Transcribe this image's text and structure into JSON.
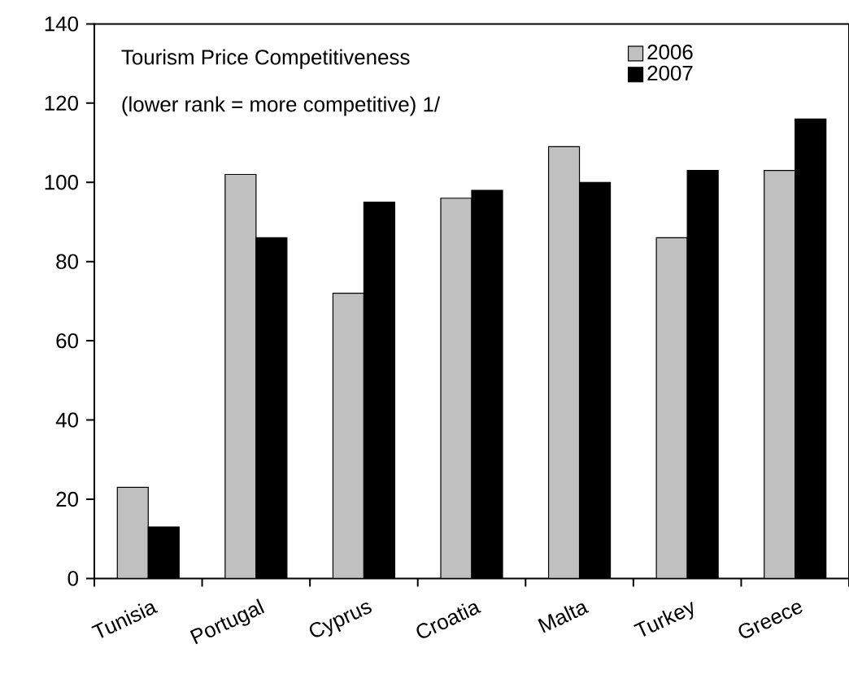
{
  "chart_data": {
    "type": "bar",
    "title": "Tourism Price Competitiveness",
    "subtitle": "(lower rank = more competitive) 1/",
    "categories": [
      "Tunisia",
      "Portugal",
      "Cyprus",
      "Croatia",
      "Malta",
      "Turkey",
      "Greece"
    ],
    "series": [
      {
        "name": "2006",
        "color": "#c0c0c0",
        "values": [
          23,
          102,
          72,
          96,
          109,
          86,
          103
        ]
      },
      {
        "name": "2007",
        "color": "#000000",
        "values": [
          13,
          86,
          95,
          98,
          100,
          103,
          116
        ]
      }
    ],
    "ylim": [
      0,
      140
    ],
    "yticks": [
      0,
      20,
      40,
      60,
      80,
      100,
      120,
      140
    ],
    "legend": "top right"
  }
}
